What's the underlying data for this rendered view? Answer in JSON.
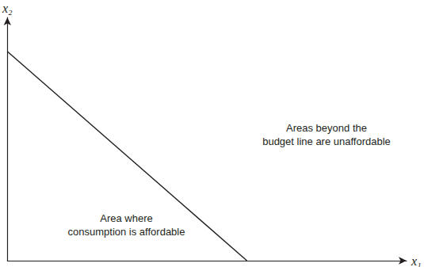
{
  "chart_data": {
    "type": "line",
    "x": [
      0,
      60
    ],
    "values": [
      86,
      0
    ],
    "xlim": [
      0,
      100
    ],
    "ylim": [
      0,
      100
    ],
    "tick_labels": false,
    "grid": false,
    "x_label": "x₁",
    "y_label": "x₂",
    "annotations": [
      "Area where\nconsumption is affordable",
      "Areas beyond the\nbudget line are unaffordable"
    ],
    "color": "#231f20"
  }
}
